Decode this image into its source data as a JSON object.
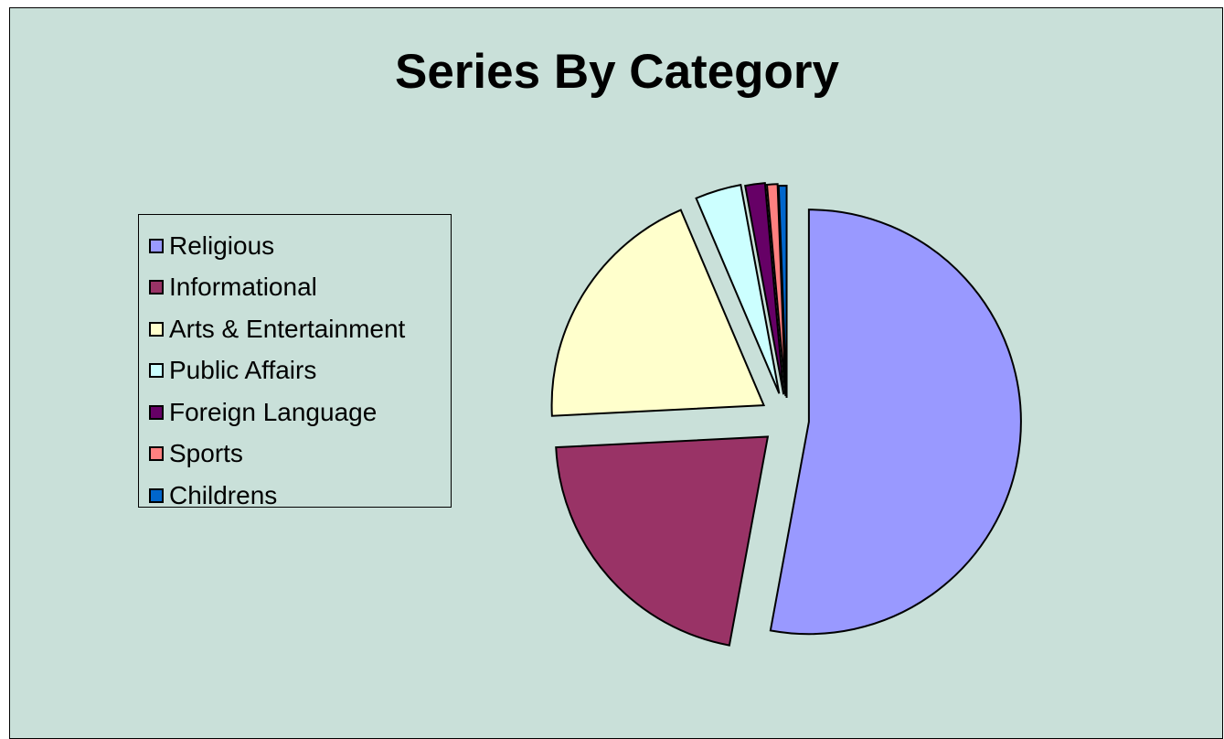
{
  "chart_data": {
    "type": "pie",
    "title": "Series By Category",
    "legend_position": "left",
    "exploded": true,
    "categories": [
      "Religious",
      "Informational",
      "Arts & Entertainment",
      "Public Affairs",
      "Foreign Language",
      "Sports",
      "Childrens"
    ],
    "values": [
      52.9,
      21.3,
      19.4,
      3.5,
      1.5,
      0.8,
      0.6
    ],
    "colors": [
      "#9999ff",
      "#993366",
      "#ffffcc",
      "#ccffff",
      "#660066",
      "#ff8080",
      "#0066cc"
    ]
  }
}
